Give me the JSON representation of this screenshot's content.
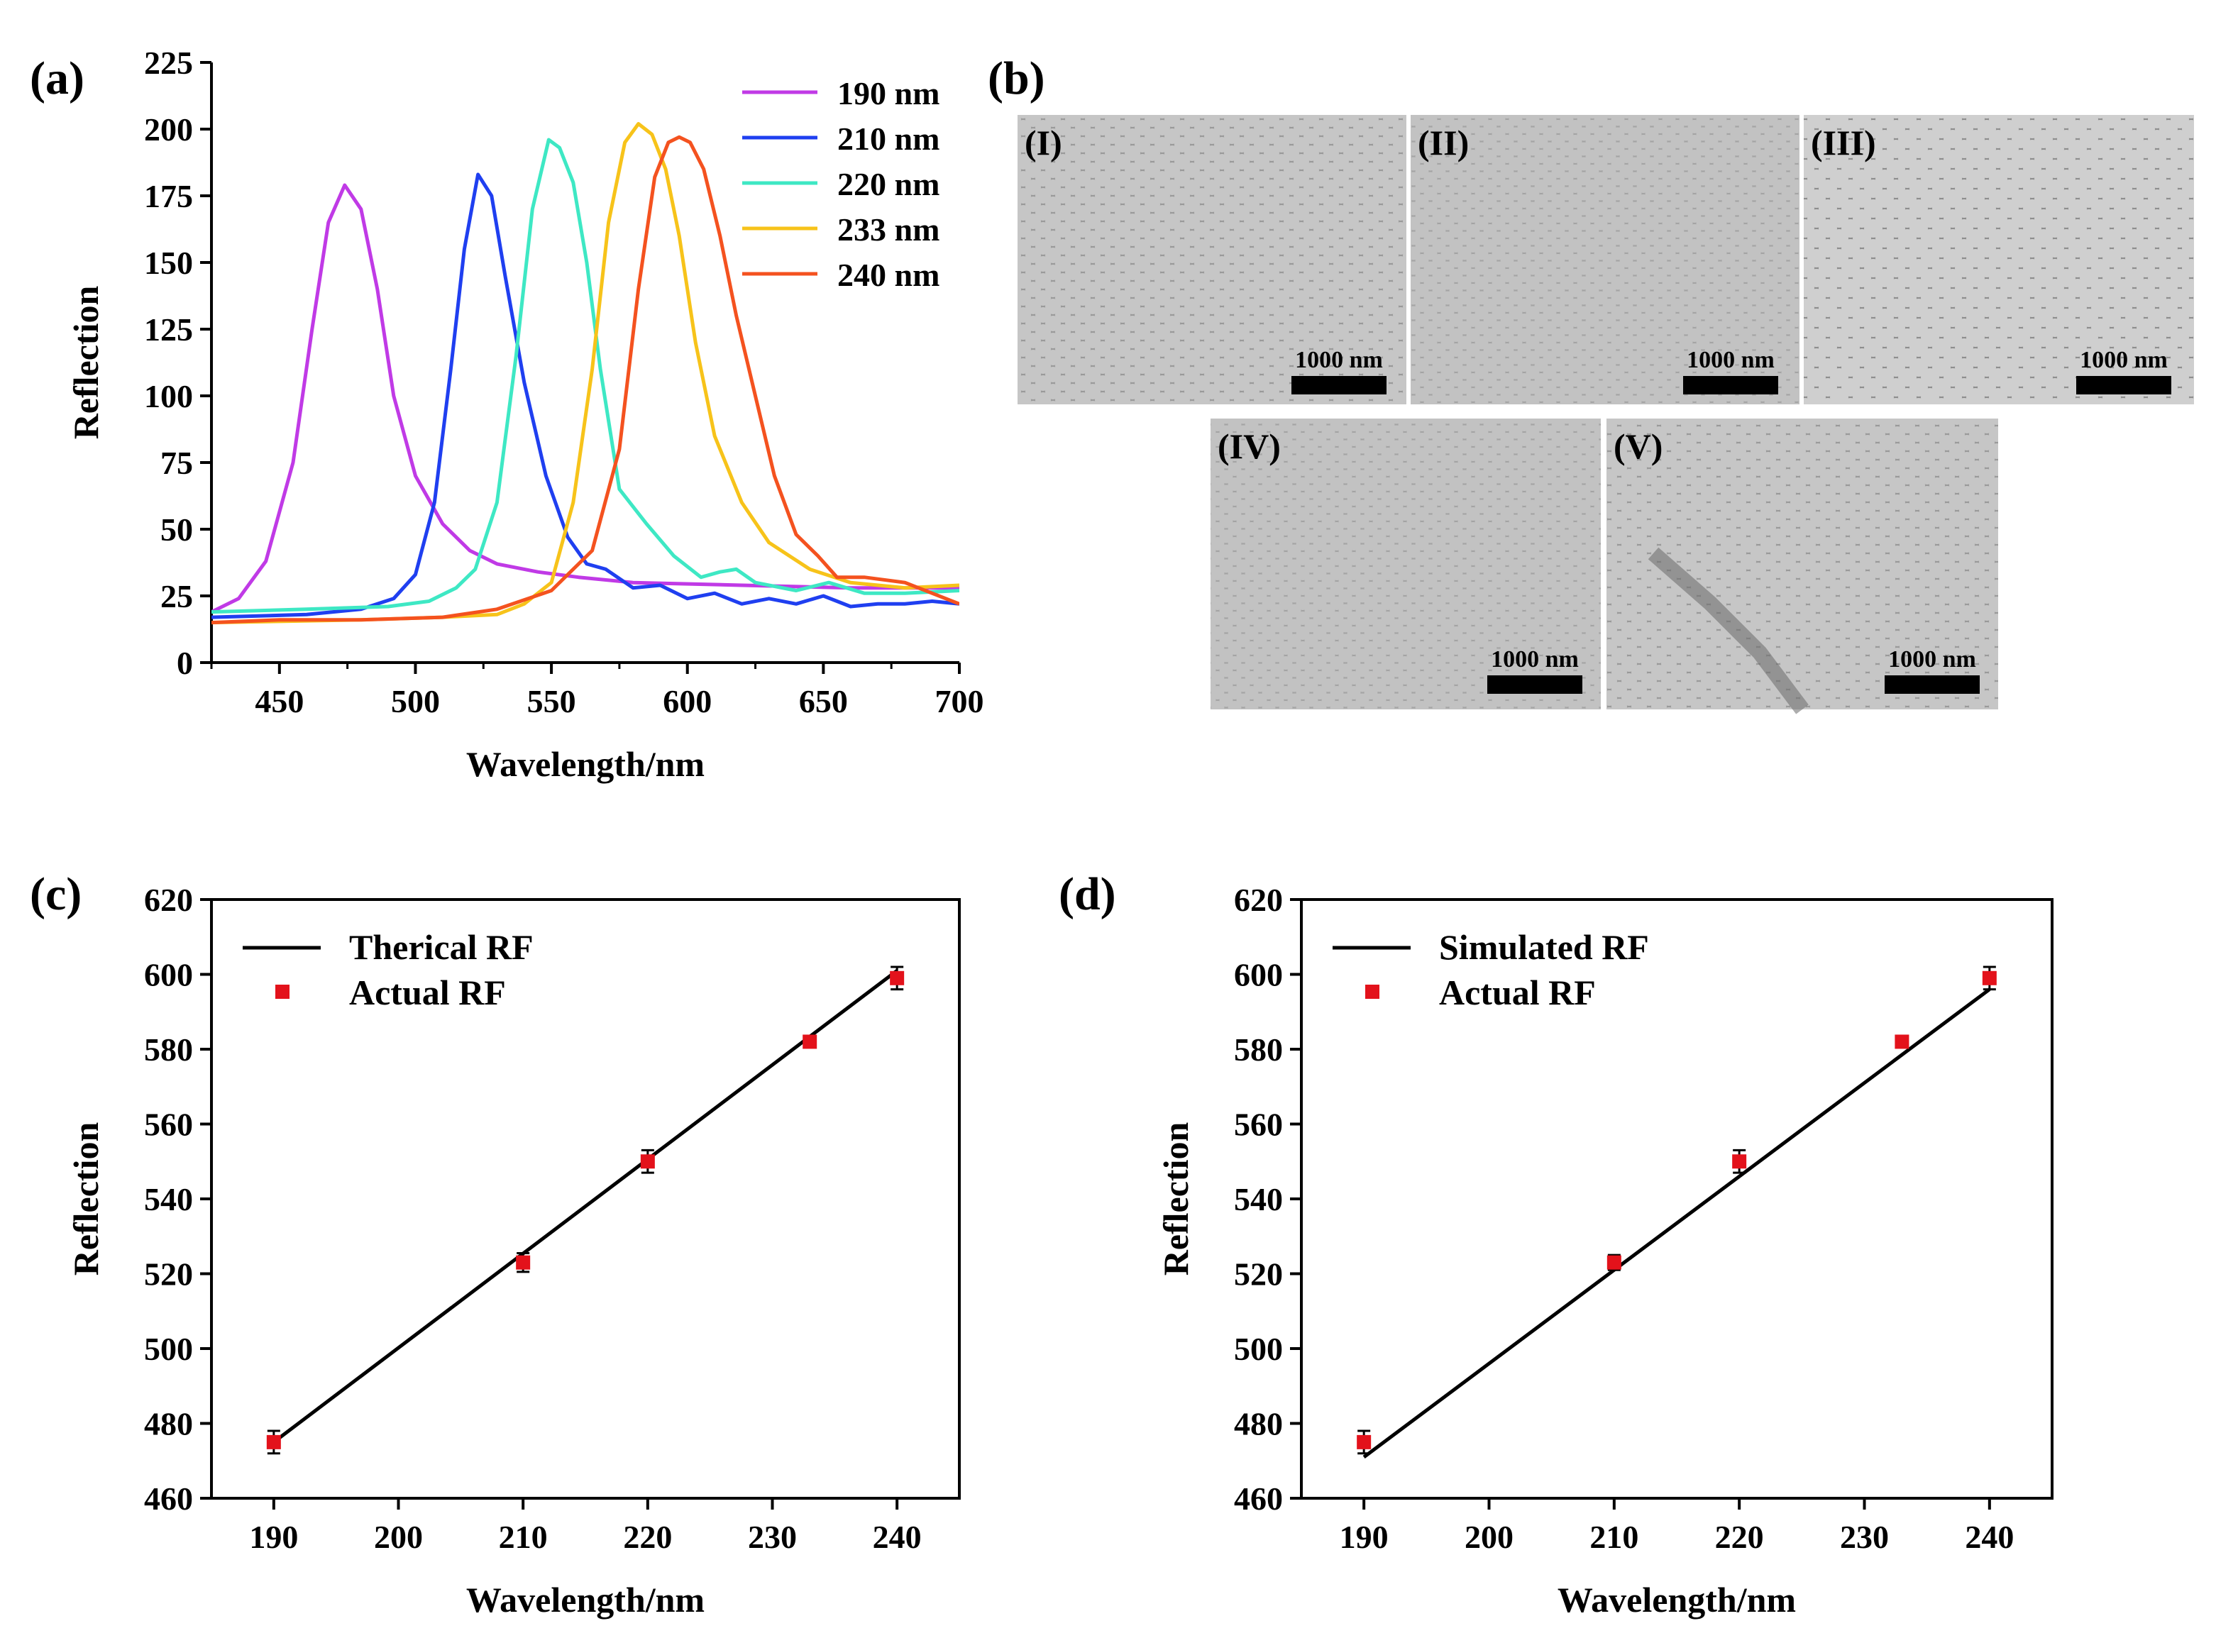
{
  "panels": {
    "a": "(a)",
    "b": "(b)",
    "c": "(c)",
    "d": "(d)"
  },
  "sem": {
    "scale_label": "1000 nm",
    "images": [
      {
        "label": "(I)"
      },
      {
        "label": "(II)"
      },
      {
        "label": "(III)"
      },
      {
        "label": "(IV)"
      },
      {
        "label": "(V)"
      }
    ]
  },
  "chart_data": [
    {
      "id": "a",
      "type": "line",
      "title": "",
      "xlabel": "Wavelength/nm",
      "ylabel": "Reflection",
      "xlim": [
        425,
        700
      ],
      "ylim": [
        0,
        225
      ],
      "xticks": [
        450,
        500,
        550,
        600,
        650,
        700
      ],
      "yticks": [
        0,
        25,
        50,
        75,
        100,
        125,
        150,
        175,
        200,
        225
      ],
      "legend_position": "top-right",
      "series": [
        {
          "name": "190 nm",
          "color": "#c03ae6",
          "x": [
            425,
            435,
            445,
            455,
            462,
            468,
            474,
            480,
            486,
            492,
            500,
            510,
            520,
            530,
            545,
            560,
            580,
            620,
            660,
            700
          ],
          "y": [
            19,
            24,
            38,
            75,
            125,
            165,
            179,
            170,
            140,
            100,
            70,
            52,
            42,
            37,
            34,
            32,
            30,
            29,
            28,
            28
          ]
        },
        {
          "name": "210 nm",
          "color": "#1f3ff0",
          "x": [
            425,
            460,
            480,
            492,
            500,
            507,
            513,
            518,
            523,
            528,
            533,
            540,
            548,
            556,
            563,
            570,
            580,
            590,
            600,
            610,
            620,
            630,
            640,
            650,
            660,
            670,
            680,
            690,
            700
          ],
          "y": [
            17,
            18,
            20,
            24,
            33,
            60,
            110,
            155,
            183,
            175,
            145,
            105,
            70,
            47,
            37,
            35,
            28,
            29,
            24,
            26,
            22,
            24,
            22,
            25,
            21,
            22,
            22,
            23,
            22
          ]
        },
        {
          "name": "220 nm",
          "color": "#3ee8c4",
          "x": [
            425,
            460,
            490,
            505,
            515,
            522,
            530,
            537,
            543,
            549,
            553,
            558,
            563,
            568,
            575,
            585,
            595,
            605,
            612,
            618,
            625,
            640,
            652,
            665,
            680,
            700
          ],
          "y": [
            19,
            20,
            21,
            23,
            28,
            35,
            60,
            115,
            170,
            196,
            193,
            180,
            150,
            110,
            65,
            52,
            40,
            32,
            34,
            35,
            30,
            27,
            30,
            26,
            26,
            27
          ]
        },
        {
          "name": "233 nm",
          "color": "#f7c31a",
          "x": [
            425,
            480,
            510,
            530,
            540,
            550,
            558,
            565,
            571,
            577,
            582,
            587,
            592,
            597,
            603,
            610,
            620,
            630,
            645,
            660,
            680,
            700
          ],
          "y": [
            15,
            16,
            17,
            18,
            22,
            30,
            60,
            110,
            165,
            195,
            202,
            198,
            185,
            160,
            120,
            85,
            60,
            45,
            35,
            30,
            28,
            29
          ]
        },
        {
          "name": "240 nm",
          "color": "#f4521f",
          "x": [
            425,
            450,
            480,
            510,
            530,
            550,
            565,
            575,
            582,
            588,
            593,
            597,
            601,
            606,
            612,
            618,
            625,
            632,
            640,
            648,
            655,
            665,
            680,
            700
          ],
          "y": [
            15,
            16,
            16,
            17,
            20,
            27,
            42,
            80,
            140,
            182,
            195,
            197,
            195,
            185,
            160,
            130,
            100,
            70,
            48,
            40,
            32,
            32,
            30,
            22
          ]
        }
      ]
    },
    {
      "id": "c",
      "type": "scatter",
      "title": "",
      "xlabel": "Wavelength/nm",
      "ylabel": "Reflection",
      "xlim": [
        185,
        245
      ],
      "ylim": [
        460,
        620
      ],
      "xticks": [
        190,
        200,
        210,
        220,
        230,
        240
      ],
      "yticks": [
        460,
        480,
        500,
        520,
        540,
        560,
        580,
        600,
        620
      ],
      "legend_position": "top-left",
      "line": {
        "name": "Therical RF",
        "x": [
          190,
          240
        ],
        "y": [
          475,
          601
        ],
        "color": "#000000"
      },
      "points": {
        "name": "Actual RF",
        "color": "#e3121b",
        "x": [
          190,
          210,
          220,
          233,
          240
        ],
        "y": [
          475,
          523,
          550,
          582,
          599
        ],
        "err": [
          3,
          2.5,
          3,
          1.5,
          3
        ]
      }
    },
    {
      "id": "d",
      "type": "scatter",
      "title": "",
      "xlabel": "Wavelength/nm",
      "ylabel": "Reflection",
      "xlim": [
        185,
        245
      ],
      "ylim": [
        460,
        620
      ],
      "xticks": [
        190,
        200,
        210,
        220,
        230,
        240
      ],
      "yticks": [
        460,
        480,
        500,
        520,
        540,
        560,
        580,
        600,
        620
      ],
      "legend_position": "top-left",
      "line": {
        "name": "Simulated RF",
        "x": [
          190,
          240
        ],
        "y": [
          471,
          596
        ],
        "color": "#000000"
      },
      "points": {
        "name": "Actual RF",
        "color": "#e3121b",
        "x": [
          190,
          210,
          220,
          233,
          240
        ],
        "y": [
          475,
          523,
          550,
          582,
          599
        ],
        "err": [
          3,
          2,
          3,
          1.5,
          3
        ]
      }
    }
  ]
}
